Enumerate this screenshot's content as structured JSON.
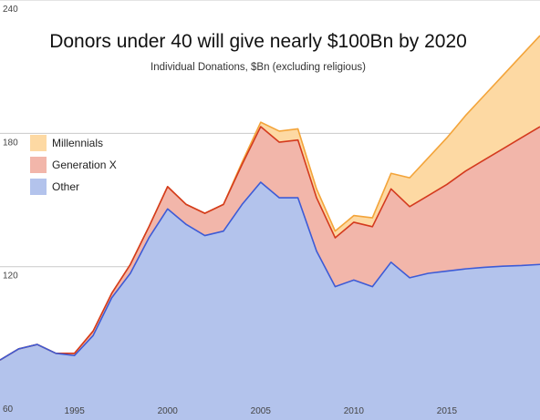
{
  "chart_data": {
    "type": "area",
    "title": "Donors under 40 will give nearly $100Bn by 2020",
    "subtitle": "Individual Donations, $Bn (excluding religious)",
    "xlabel": "",
    "ylabel": "",
    "stacked": true,
    "xlim": [
      1991,
      2020
    ],
    "ylim": [
      51,
      240
    ],
    "y_ticks": [
      60,
      120,
      180,
      240
    ],
    "x_ticks": [
      1995,
      2000,
      2005,
      2010,
      2015
    ],
    "grid": {
      "horizontal": true,
      "vertical": false
    },
    "legend": "left",
    "x": [
      1991,
      1992,
      1993,
      1994,
      1995,
      1996,
      1997,
      1998,
      1999,
      2000,
      2001,
      2002,
      2003,
      2004,
      2005,
      2006,
      2007,
      2008,
      2009,
      2010,
      2011,
      2012,
      2013,
      2014,
      2015,
      2016,
      2017,
      2018,
      2019,
      2020
    ],
    "series": [
      {
        "name": "Other",
        "color": "#b3c3ec",
        "line_color": "#3d5bd6",
        "top": [
          78,
          83,
          85,
          81,
          80,
          89,
          106,
          117,
          133,
          146,
          139,
          134,
          136,
          148,
          158,
          151,
          151,
          127,
          111,
          114,
          111,
          122,
          115,
          117,
          118,
          119,
          119.7,
          120.2,
          120.5,
          121
        ]
      },
      {
        "name": "Generation X",
        "color": "#f2b6aa",
        "line_color": "#d43a1e",
        "top": [
          78,
          83,
          85,
          81,
          81,
          91,
          108,
          121,
          138,
          156,
          148,
          144,
          148,
          166,
          183,
          176,
          177,
          151,
          133,
          140,
          138,
          155,
          147,
          152,
          157,
          163,
          168,
          173,
          178,
          183
        ]
      },
      {
        "name": "Millennials",
        "color": "#fdd9a3",
        "line_color": "#f3a43a",
        "top": [
          78,
          83,
          85,
          81,
          81,
          91,
          108,
          121,
          138,
          156,
          148,
          144,
          148,
          167,
          185,
          181,
          182,
          155,
          136,
          143,
          142,
          162,
          160,
          169,
          178,
          188,
          197,
          206,
          215,
          224
        ]
      }
    ]
  }
}
